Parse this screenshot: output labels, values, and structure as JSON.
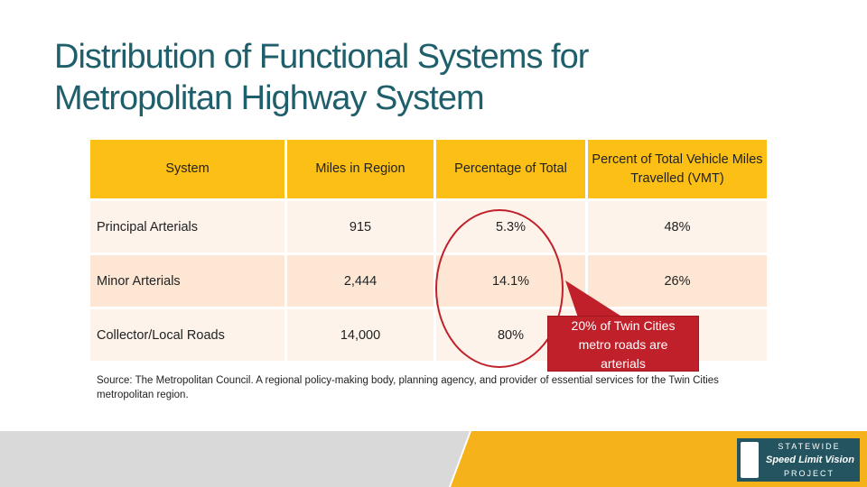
{
  "slide": {
    "title_line1": "Distribution of Functional Systems for",
    "title_line2": "Metropolitan Highway System"
  },
  "table": {
    "headers": [
      "System",
      "Miles in Region",
      "Percentage of Total",
      "Percent of Total Vehicle Miles Travelled (VMT)"
    ],
    "rows": [
      [
        "Principal Arterials",
        "915",
        "5.3%",
        "48%"
      ],
      [
        "Minor Arterials",
        "2,444",
        "14.1%",
        "26%"
      ],
      [
        "Collector/Local Roads",
        "14,000",
        "80%",
        ""
      ]
    ]
  },
  "callout": {
    "text_line1": "20% of Twin Cities",
    "text_line2": "metro roads are",
    "text_line3": "arterials"
  },
  "source": {
    "text": "Source: The Metropolitan Council. A regional policy-making body, planning agency, and provider of essential services for the Twin Cities metropolitan region."
  },
  "logo": {
    "line1": "STATEWIDE",
    "line2": "Speed Limit Vision",
    "line3": "PROJECT",
    "icon": "minnesota-state-icon"
  },
  "colors": {
    "title": "#1f5f6b",
    "header_fill": "#fbbf16",
    "row_fill_light": "#fdf3ea",
    "row_fill_dark": "#fde7d4",
    "callout": "#c0202a",
    "footer_gray": "#d9d9d9",
    "footer_yellow": "#f5b21b",
    "logo_bg": "#23545f"
  }
}
